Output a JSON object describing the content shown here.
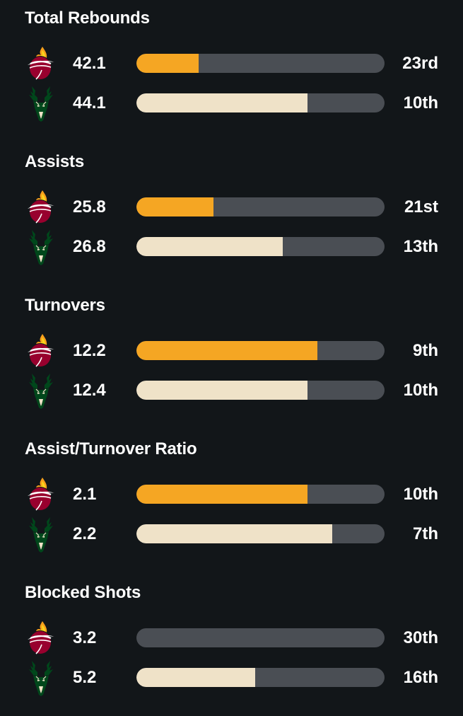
{
  "colors": {
    "background": "#121619",
    "bar_track": "#4a4e54",
    "heat_bar": "#f5a623",
    "bucks_bar": "#efe2c8",
    "heat_red": "#98002e",
    "bucks_green": "#00471b"
  },
  "teams": {
    "heat": {
      "icon": "heat-logo-icon"
    },
    "bucks": {
      "icon": "bucks-logo-icon"
    }
  },
  "stats": [
    {
      "title": "Total Rebounds",
      "heat": {
        "value": "42.1",
        "rank": "23rd",
        "bar_fraction": 0.25
      },
      "bucks": {
        "value": "44.1",
        "rank": "10th",
        "bar_fraction": 0.69
      }
    },
    {
      "title": "Assists",
      "heat": {
        "value": "25.8",
        "rank": "21st",
        "bar_fraction": 0.31
      },
      "bucks": {
        "value": "26.8",
        "rank": "13th",
        "bar_fraction": 0.59
      }
    },
    {
      "title": "Turnovers",
      "heat": {
        "value": "12.2",
        "rank": "9th",
        "bar_fraction": 0.73
      },
      "bucks": {
        "value": "12.4",
        "rank": "10th",
        "bar_fraction": 0.69
      }
    },
    {
      "title": "Assist/Turnover Ratio",
      "heat": {
        "value": "2.1",
        "rank": "10th",
        "bar_fraction": 0.69
      },
      "bucks": {
        "value": "2.2",
        "rank": "7th",
        "bar_fraction": 0.79
      }
    },
    {
      "title": "Blocked Shots",
      "heat": {
        "value": "3.2",
        "rank": "30th",
        "bar_fraction": 0.0
      },
      "bucks": {
        "value": "5.2",
        "rank": "16th",
        "bar_fraction": 0.48
      }
    }
  ]
}
